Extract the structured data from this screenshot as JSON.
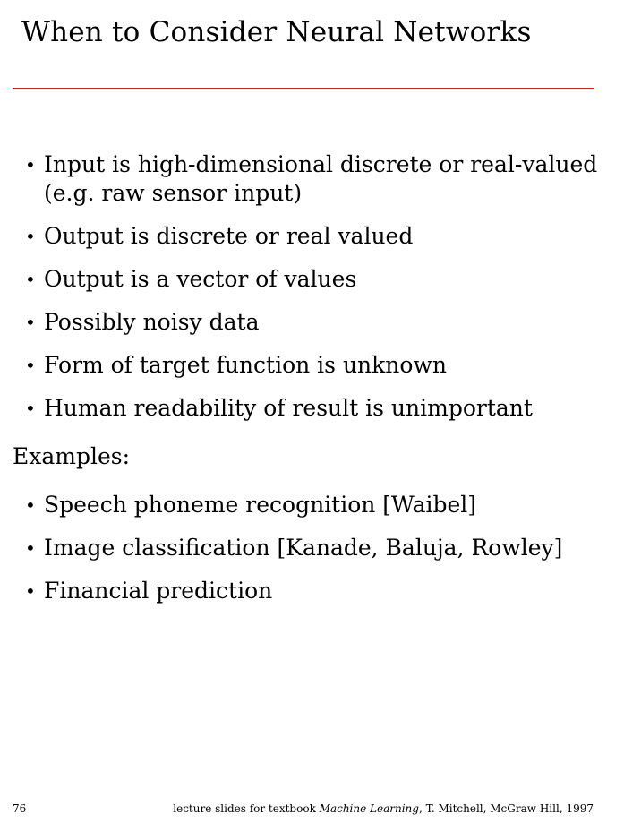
{
  "slide": {
    "title": "When to Consider Neural Networks",
    "criteria": [
      {
        "line1": "Input is high-dimensional discrete or real-valued",
        "line2": "(e.g. raw sensor input)"
      },
      {
        "line1": "Output is discrete or real valued"
      },
      {
        "line1": "Output is a vector of values"
      },
      {
        "line1": "Possibly noisy data"
      },
      {
        "line1": "Form of target function is unknown"
      },
      {
        "line1": "Human readability of result is unimportant"
      }
    ],
    "examples_label": "Examples:",
    "examples": [
      "Speech phoneme recognition [Waibel]",
      "Image classification [Kanade, Baluja, Rowley]",
      "Financial prediction"
    ],
    "bullet_glyph": "•"
  },
  "footer": {
    "page_number": "76",
    "credit_prefix": "lecture slides for textbook ",
    "credit_book": "Machine Learning",
    "credit_suffix": ", T. Mitchell, McGraw Hill, 1997"
  },
  "colors": {
    "rule": "#c8282a",
    "text": "#000000",
    "background": "#ffffff"
  }
}
